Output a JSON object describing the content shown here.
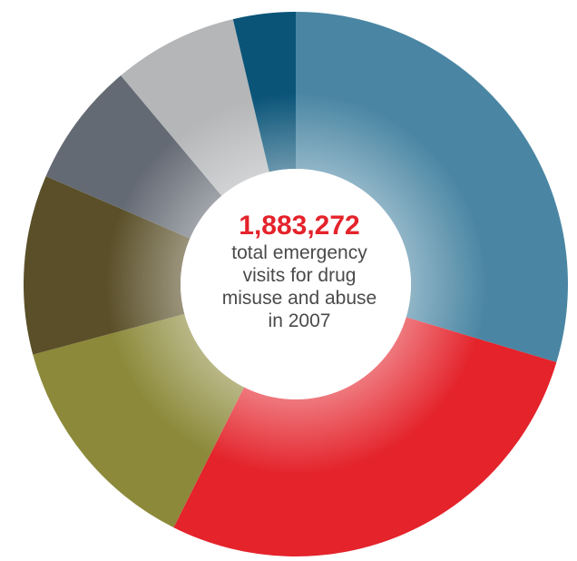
{
  "center": {
    "number": "1,883,272",
    "number_color": "#e4232b",
    "lines": [
      "total emergency",
      "visits for drug",
      "misuse and abuse",
      "in 2007"
    ]
  },
  "chart_data": {
    "type": "pie",
    "donut": true,
    "title": "",
    "slices": [
      {
        "value": 32.0,
        "color": "#4a86a3"
      },
      {
        "value": 30.0,
        "color": "#e4232b"
      },
      {
        "value": 14.5,
        "color": "#8c8a3a"
      },
      {
        "value": 11.5,
        "color": "#5a4f28"
      },
      {
        "value": 8.0,
        "color": "#646a74"
      },
      {
        "value": 8.0,
        "color": "#b4b6b8"
      },
      {
        "value": 4.0,
        "color": "#0a5478"
      }
    ]
  }
}
